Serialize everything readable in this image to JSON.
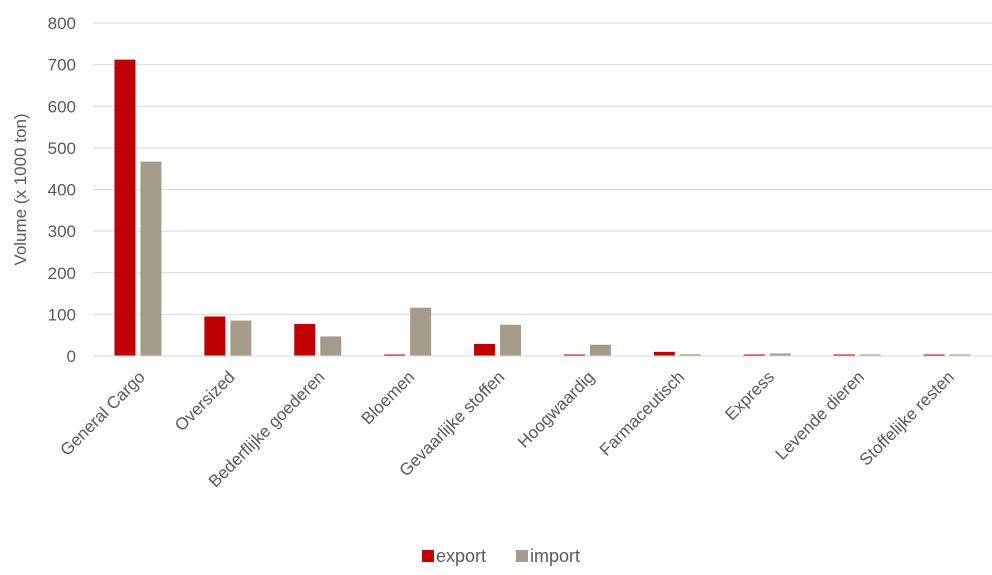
{
  "chart_data": {
    "type": "bar",
    "title": "",
    "xlabel": "",
    "ylabel": "Volume (x 1000 ton)",
    "ylim": [
      0,
      800
    ],
    "yticks": [
      0,
      100,
      200,
      300,
      400,
      500,
      600,
      700,
      800
    ],
    "grid": true,
    "legend_position": "bottom",
    "categories": [
      "General Cargo",
      "Oversized",
      "Bederflijke goederen",
      "Bloemen",
      "Gevaarlijke stoffen",
      "Hoogwaardig",
      "Farmaceutisch",
      "Express",
      "Levende dieren",
      "Stoffelijke resten"
    ],
    "series": [
      {
        "name": "export",
        "color": "#C00000",
        "values": [
          712,
          95,
          77,
          3,
          29,
          3,
          10,
          3,
          2,
          0.5
        ]
      },
      {
        "name": "import",
        "color": "#A59B8A",
        "values": [
          467,
          85,
          47,
          116,
          75,
          27,
          4,
          6,
          2,
          0.5
        ]
      }
    ]
  }
}
